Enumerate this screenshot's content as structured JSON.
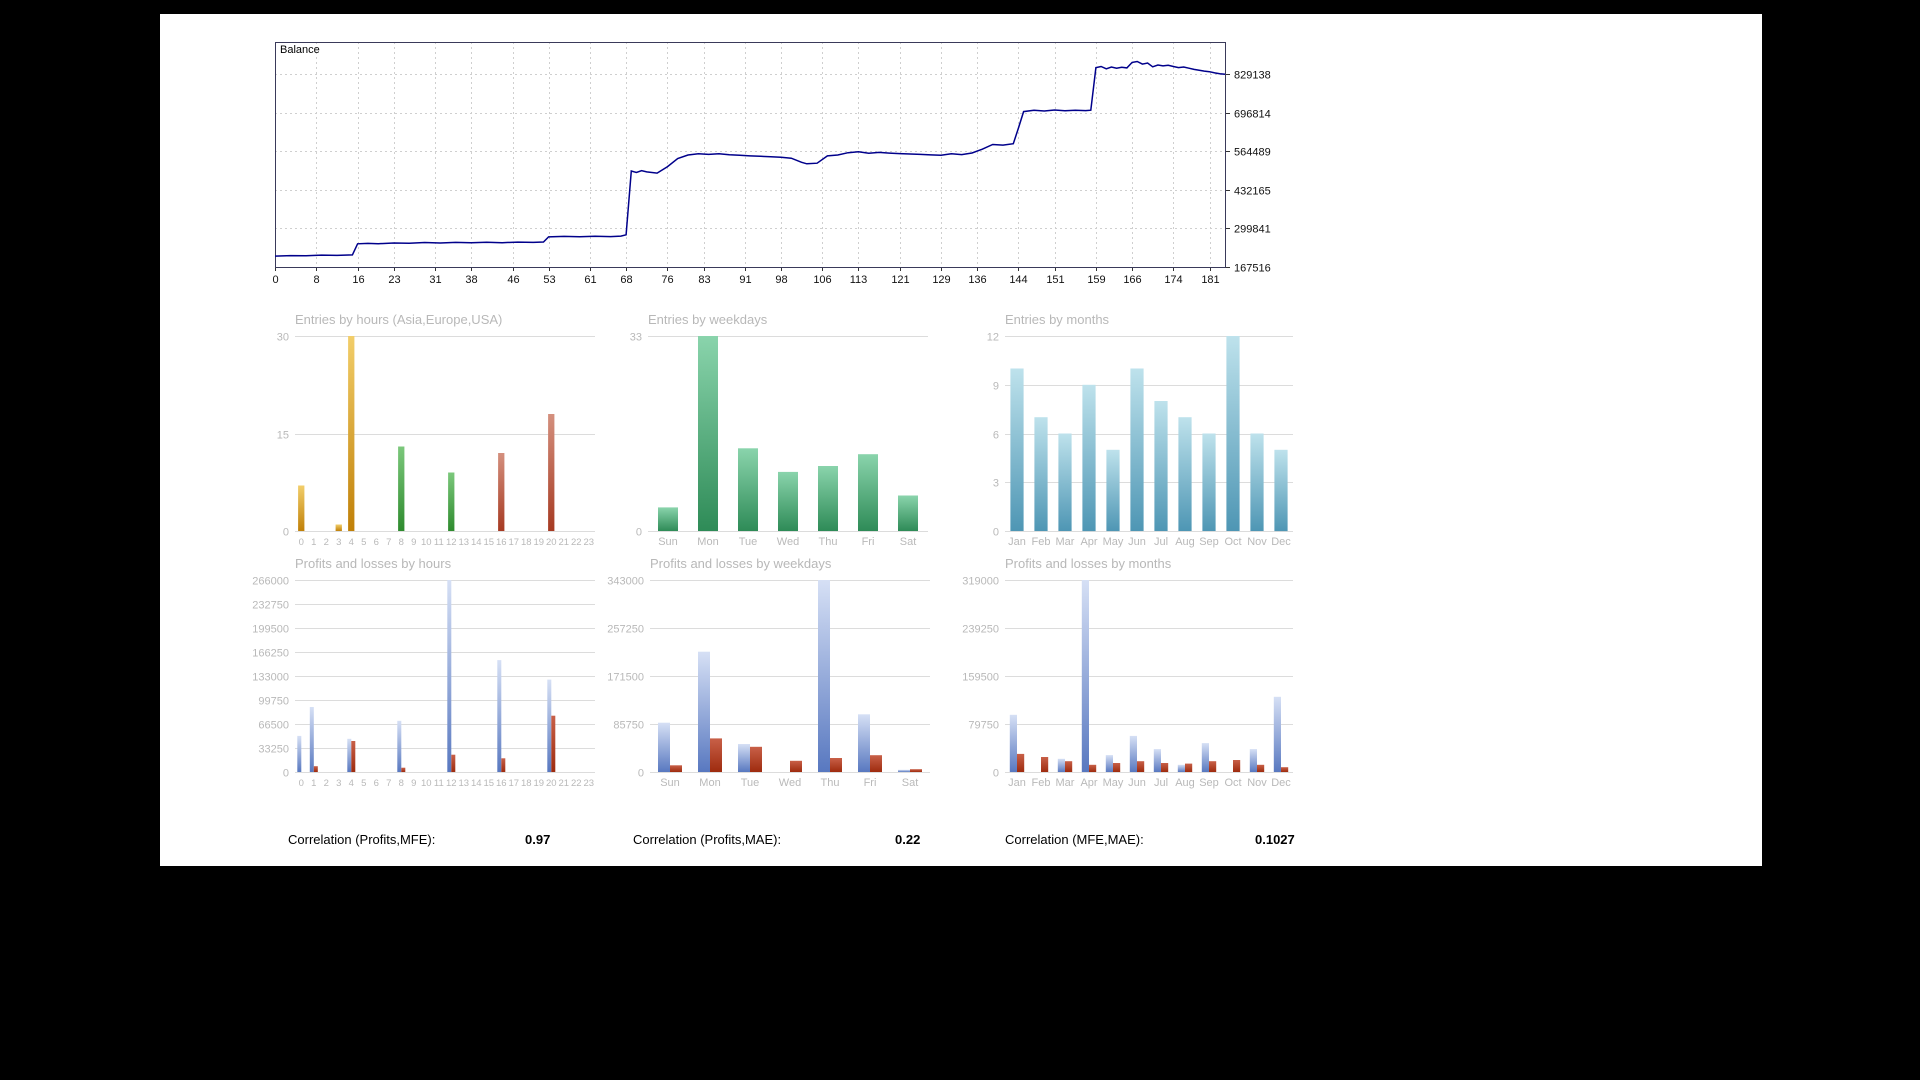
{
  "correlations": [
    {
      "label": "Correlation (Profits,MFE):",
      "value": "0.97"
    },
    {
      "label": "Correlation (Profits,MAE):",
      "value": "0.22"
    },
    {
      "label": "Correlation (MFE,MAE):",
      "value": "0.1027"
    }
  ],
  "chart_data": [
    {
      "id": "balance",
      "type": "line",
      "title": "Balance",
      "line_color": "#00008B",
      "xlim": [
        0,
        184
      ],
      "ylim": [
        167516,
        940000
      ],
      "x_ticks": [
        0,
        8,
        16,
        23,
        31,
        38,
        46,
        53,
        61,
        68,
        76,
        83,
        91,
        98,
        106,
        113,
        121,
        129,
        136,
        144,
        151,
        159,
        166,
        174,
        181
      ],
      "y_ticks": [
        167516,
        299841,
        432165,
        564489,
        696814,
        829138
      ],
      "points": [
        [
          0,
          205000
        ],
        [
          3,
          206500
        ],
        [
          6,
          206000
        ],
        [
          9,
          208500
        ],
        [
          12,
          207500
        ],
        [
          15,
          209000
        ],
        [
          16,
          247000
        ],
        [
          18,
          248500
        ],
        [
          20,
          247500
        ],
        [
          23,
          250000
        ],
        [
          26,
          249000
        ],
        [
          29,
          251500
        ],
        [
          32,
          250000
        ],
        [
          35,
          252000
        ],
        [
          38,
          250500
        ],
        [
          41,
          252500
        ],
        [
          44,
          251000
        ],
        [
          47,
          253000
        ],
        [
          50,
          252000
        ],
        [
          52,
          253500
        ],
        [
          53,
          271000
        ],
        [
          56,
          272500
        ],
        [
          59,
          271500
        ],
        [
          62,
          273000
        ],
        [
          65,
          272000
        ],
        [
          67,
          273500
        ],
        [
          68,
          278000
        ],
        [
          69,
          497000
        ],
        [
          70,
          492000
        ],
        [
          71,
          498000
        ],
        [
          72,
          494000
        ],
        [
          74,
          490000
        ],
        [
          76,
          512000
        ],
        [
          78,
          540000
        ],
        [
          80,
          552000
        ],
        [
          82,
          556000
        ],
        [
          84,
          554000
        ],
        [
          86,
          556500
        ],
        [
          88,
          553000
        ],
        [
          90,
          551000
        ],
        [
          92,
          549000
        ],
        [
          94,
          547500
        ],
        [
          96,
          546000
        ],
        [
          98,
          544000
        ],
        [
          100,
          541000
        ],
        [
          102,
          527000
        ],
        [
          103,
          522000
        ],
        [
          105,
          524000
        ],
        [
          107,
          549000
        ],
        [
          109,
          552000
        ],
        [
          111,
          560000
        ],
        [
          113,
          563000
        ],
        [
          115,
          558000
        ],
        [
          117,
          561000
        ],
        [
          119,
          558500
        ],
        [
          121,
          557000
        ],
        [
          123,
          555500
        ],
        [
          125,
          554000
        ],
        [
          127,
          552500
        ],
        [
          129,
          551000
        ],
        [
          131,
          556000
        ],
        [
          133,
          553500
        ],
        [
          135,
          559000
        ],
        [
          137,
          572000
        ],
        [
          139,
          588000
        ],
        [
          141,
          586000
        ],
        [
          143,
          591000
        ],
        [
          144,
          645000
        ],
        [
          145,
          701000
        ],
        [
          147,
          706000
        ],
        [
          149,
          703000
        ],
        [
          151,
          706500
        ],
        [
          153,
          704000
        ],
        [
          155,
          706000
        ],
        [
          157,
          704500
        ],
        [
          158,
          706000
        ],
        [
          159,
          852000
        ],
        [
          160,
          856000
        ],
        [
          161,
          848000
        ],
        [
          162,
          854000
        ],
        [
          163,
          850000
        ],
        [
          164,
          853000
        ],
        [
          165,
          851000
        ],
        [
          166,
          870000
        ],
        [
          167,
          873000
        ],
        [
          168,
          864000
        ],
        [
          169,
          868000
        ],
        [
          170,
          855000
        ],
        [
          171,
          861000
        ],
        [
          172,
          858000
        ],
        [
          173,
          860000
        ],
        [
          174,
          856000
        ],
        [
          175,
          852000
        ],
        [
          176,
          854000
        ],
        [
          177,
          850000
        ],
        [
          178,
          846000
        ],
        [
          179,
          843000
        ],
        [
          180,
          840000
        ],
        [
          181,
          838000
        ],
        [
          182,
          834000
        ],
        [
          183,
          831000
        ],
        [
          184,
          829138
        ]
      ]
    },
    {
      "id": "entries_by_hours",
      "type": "bar",
      "title": "Entries by hours (Asia,Europe,USA)",
      "categories": [
        "0",
        "1",
        "2",
        "3",
        "4",
        "5",
        "6",
        "7",
        "8",
        "9",
        "10",
        "11",
        "12",
        "13",
        "14",
        "15",
        "16",
        "17",
        "18",
        "19",
        "20",
        "21",
        "22",
        "23"
      ],
      "values": [
        7,
        0,
        0,
        1,
        30,
        0,
        0,
        0,
        13,
        0,
        0,
        0,
        9,
        0,
        0,
        0,
        12,
        0,
        0,
        0,
        18,
        0,
        0,
        0
      ],
      "ylim": [
        0,
        30
      ],
      "y_ticks": [
        0,
        15,
        30
      ],
      "bar_frac": 0.5,
      "label_font": 9.5,
      "color_groups": [
        {
          "name": "Asia",
          "from": 0,
          "to": 7,
          "top": "#F2CE6A",
          "bottom": "#C08008"
        },
        {
          "name": "Europe",
          "from": 8,
          "to": 15,
          "top": "#7CC87C",
          "bottom": "#2E8B2E"
        },
        {
          "name": "USA",
          "from": 16,
          "to": 23,
          "top": "#D4907E",
          "bottom": "#A63A22"
        }
      ]
    },
    {
      "id": "entries_by_weekdays",
      "type": "bar",
      "title": "Entries by weekdays",
      "categories": [
        "Sun",
        "Mon",
        "Tue",
        "Wed",
        "Thu",
        "Fri",
        "Sat"
      ],
      "values": [
        4,
        33,
        14,
        10,
        11,
        13,
        6
      ],
      "ylim": [
        0,
        33
      ],
      "y_ticks": [
        0,
        33
      ],
      "bar_frac": 0.5,
      "bar_color": [
        "#8AD4AC",
        "#2E8B57"
      ]
    },
    {
      "id": "entries_by_months",
      "type": "bar",
      "title": "Entries by months",
      "categories": [
        "Jan",
        "Feb",
        "Mar",
        "Apr",
        "May",
        "Jun",
        "Jul",
        "Aug",
        "Sep",
        "Oct",
        "Nov",
        "Dec"
      ],
      "values": [
        10,
        7,
        6,
        9,
        5,
        10,
        8,
        7,
        6,
        12,
        6,
        5
      ],
      "ylim": [
        0,
        12
      ],
      "y_ticks": [
        0,
        3,
        6,
        9,
        12
      ],
      "bar_frac": 0.55,
      "bar_color": [
        "#BEE2EC",
        "#4E96B4"
      ]
    },
    {
      "id": "pl_by_hours",
      "type": "bar",
      "title": "Profits and losses by hours",
      "categories": [
        "0",
        "1",
        "2",
        "3",
        "4",
        "5",
        "6",
        "7",
        "8",
        "9",
        "10",
        "11",
        "12",
        "13",
        "14",
        "15",
        "16",
        "17",
        "18",
        "19",
        "20",
        "21",
        "22",
        "23"
      ],
      "series": [
        {
          "name": "Profit",
          "values": [
            50000,
            90000,
            0,
            0,
            46000,
            0,
            0,
            0,
            71000,
            0,
            0,
            0,
            266000,
            0,
            0,
            0,
            155000,
            0,
            0,
            0,
            128000,
            0,
            0,
            0
          ]
        },
        {
          "name": "Loss",
          "values": [
            0,
            8000,
            0,
            0,
            43000,
            0,
            0,
            0,
            6000,
            0,
            0,
            0,
            24000,
            0,
            0,
            0,
            19000,
            0,
            0,
            0,
            78000,
            0,
            0,
            0
          ]
        }
      ],
      "ylim": [
        0,
        266000
      ],
      "y_ticks": [
        0,
        33250,
        66500,
        99750,
        133000,
        166250,
        199500,
        232750,
        266000
      ],
      "bar_frac": 0.32,
      "label_font": 9.5,
      "profit_color": [
        "#D6E0F5",
        "#5878C0"
      ],
      "loss_color": [
        "#C86048",
        "#9E2B0E"
      ]
    },
    {
      "id": "pl_by_weekdays",
      "type": "bar",
      "title": "Profits and losses by weekdays",
      "categories": [
        "Sun",
        "Mon",
        "Tue",
        "Wed",
        "Thu",
        "Fri",
        "Sat"
      ],
      "series": [
        {
          "name": "Profit",
          "values": [
            88000,
            215000,
            50000,
            0,
            343000,
            103000,
            4000
          ]
        },
        {
          "name": "Loss",
          "values": [
            12000,
            60000,
            45000,
            20000,
            25000,
            30000,
            5000
          ]
        }
      ],
      "ylim": [
        0,
        343000
      ],
      "y_ticks": [
        0,
        85750,
        171500,
        257250,
        343000
      ],
      "bar_frac": 0.3,
      "profit_color": [
        "#D6E0F5",
        "#5878C0"
      ],
      "loss_color": [
        "#C86048",
        "#9E2B0E"
      ]
    },
    {
      "id": "pl_by_months",
      "type": "bar",
      "title": "Profits and losses by months",
      "categories": [
        "Jan",
        "Feb",
        "Mar",
        "Apr",
        "May",
        "Jun",
        "Jul",
        "Aug",
        "Sep",
        "Oct",
        "Nov",
        "Dec"
      ],
      "series": [
        {
          "name": "Profit",
          "values": [
            95000,
            0,
            22000,
            319000,
            28000,
            60000,
            38000,
            12000,
            48000,
            0,
            38000,
            125000
          ]
        },
        {
          "name": "Loss",
          "values": [
            30000,
            25000,
            18000,
            12000,
            15000,
            18000,
            15000,
            14000,
            18000,
            20000,
            12000,
            8000
          ]
        }
      ],
      "ylim": [
        0,
        319000
      ],
      "y_ticks": [
        0,
        79750,
        159500,
        239250,
        319000
      ],
      "bar_frac": 0.3,
      "profit_color": [
        "#D6E0F5",
        "#5878C0"
      ],
      "loss_color": [
        "#C86048",
        "#9E2B0E"
      ]
    }
  ]
}
